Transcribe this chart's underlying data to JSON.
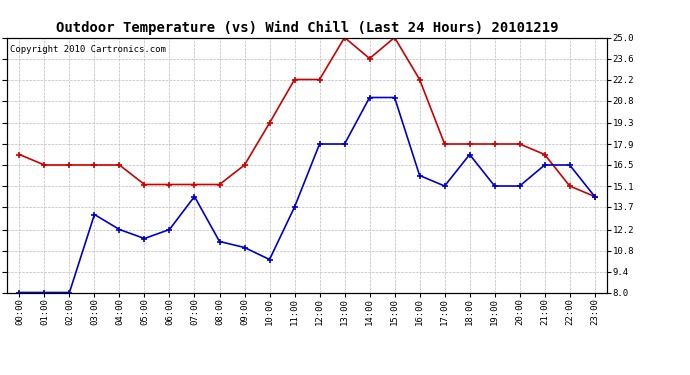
{
  "title": "Outdoor Temperature (vs) Wind Chill (Last 24 Hours) 20101219",
  "copyright": "Copyright 2010 Cartronics.com",
  "x_labels": [
    "00:00",
    "01:00",
    "02:00",
    "03:00",
    "04:00",
    "05:00",
    "06:00",
    "07:00",
    "08:00",
    "09:00",
    "10:00",
    "11:00",
    "12:00",
    "13:00",
    "14:00",
    "15:00",
    "16:00",
    "17:00",
    "18:00",
    "19:00",
    "20:00",
    "21:00",
    "22:00",
    "23:00"
  ],
  "red_data": [
    17.2,
    16.5,
    16.5,
    16.5,
    16.5,
    15.2,
    15.2,
    15.2,
    15.2,
    16.5,
    19.3,
    22.2,
    22.2,
    25.0,
    23.6,
    25.0,
    22.2,
    17.9,
    17.9,
    17.9,
    17.9,
    17.2,
    15.1,
    14.4
  ],
  "blue_data": [
    8.0,
    8.0,
    8.0,
    13.2,
    12.2,
    11.6,
    12.2,
    14.4,
    11.4,
    11.0,
    10.2,
    13.7,
    17.9,
    17.9,
    21.0,
    21.0,
    15.8,
    15.1,
    17.2,
    15.1,
    15.1,
    16.5,
    16.5,
    14.4
  ],
  "ylim": [
    8.0,
    25.0
  ],
  "yticks": [
    8.0,
    9.4,
    10.8,
    12.2,
    13.7,
    15.1,
    16.5,
    17.9,
    19.3,
    20.8,
    22.2,
    23.6,
    25.0
  ],
  "red_color": "#cc0000",
  "blue_color": "#0000cc",
  "bg_color": "#ffffff",
  "grid_color": "#bbbbbb",
  "title_fontsize": 10,
  "copyright_fontsize": 6.5
}
